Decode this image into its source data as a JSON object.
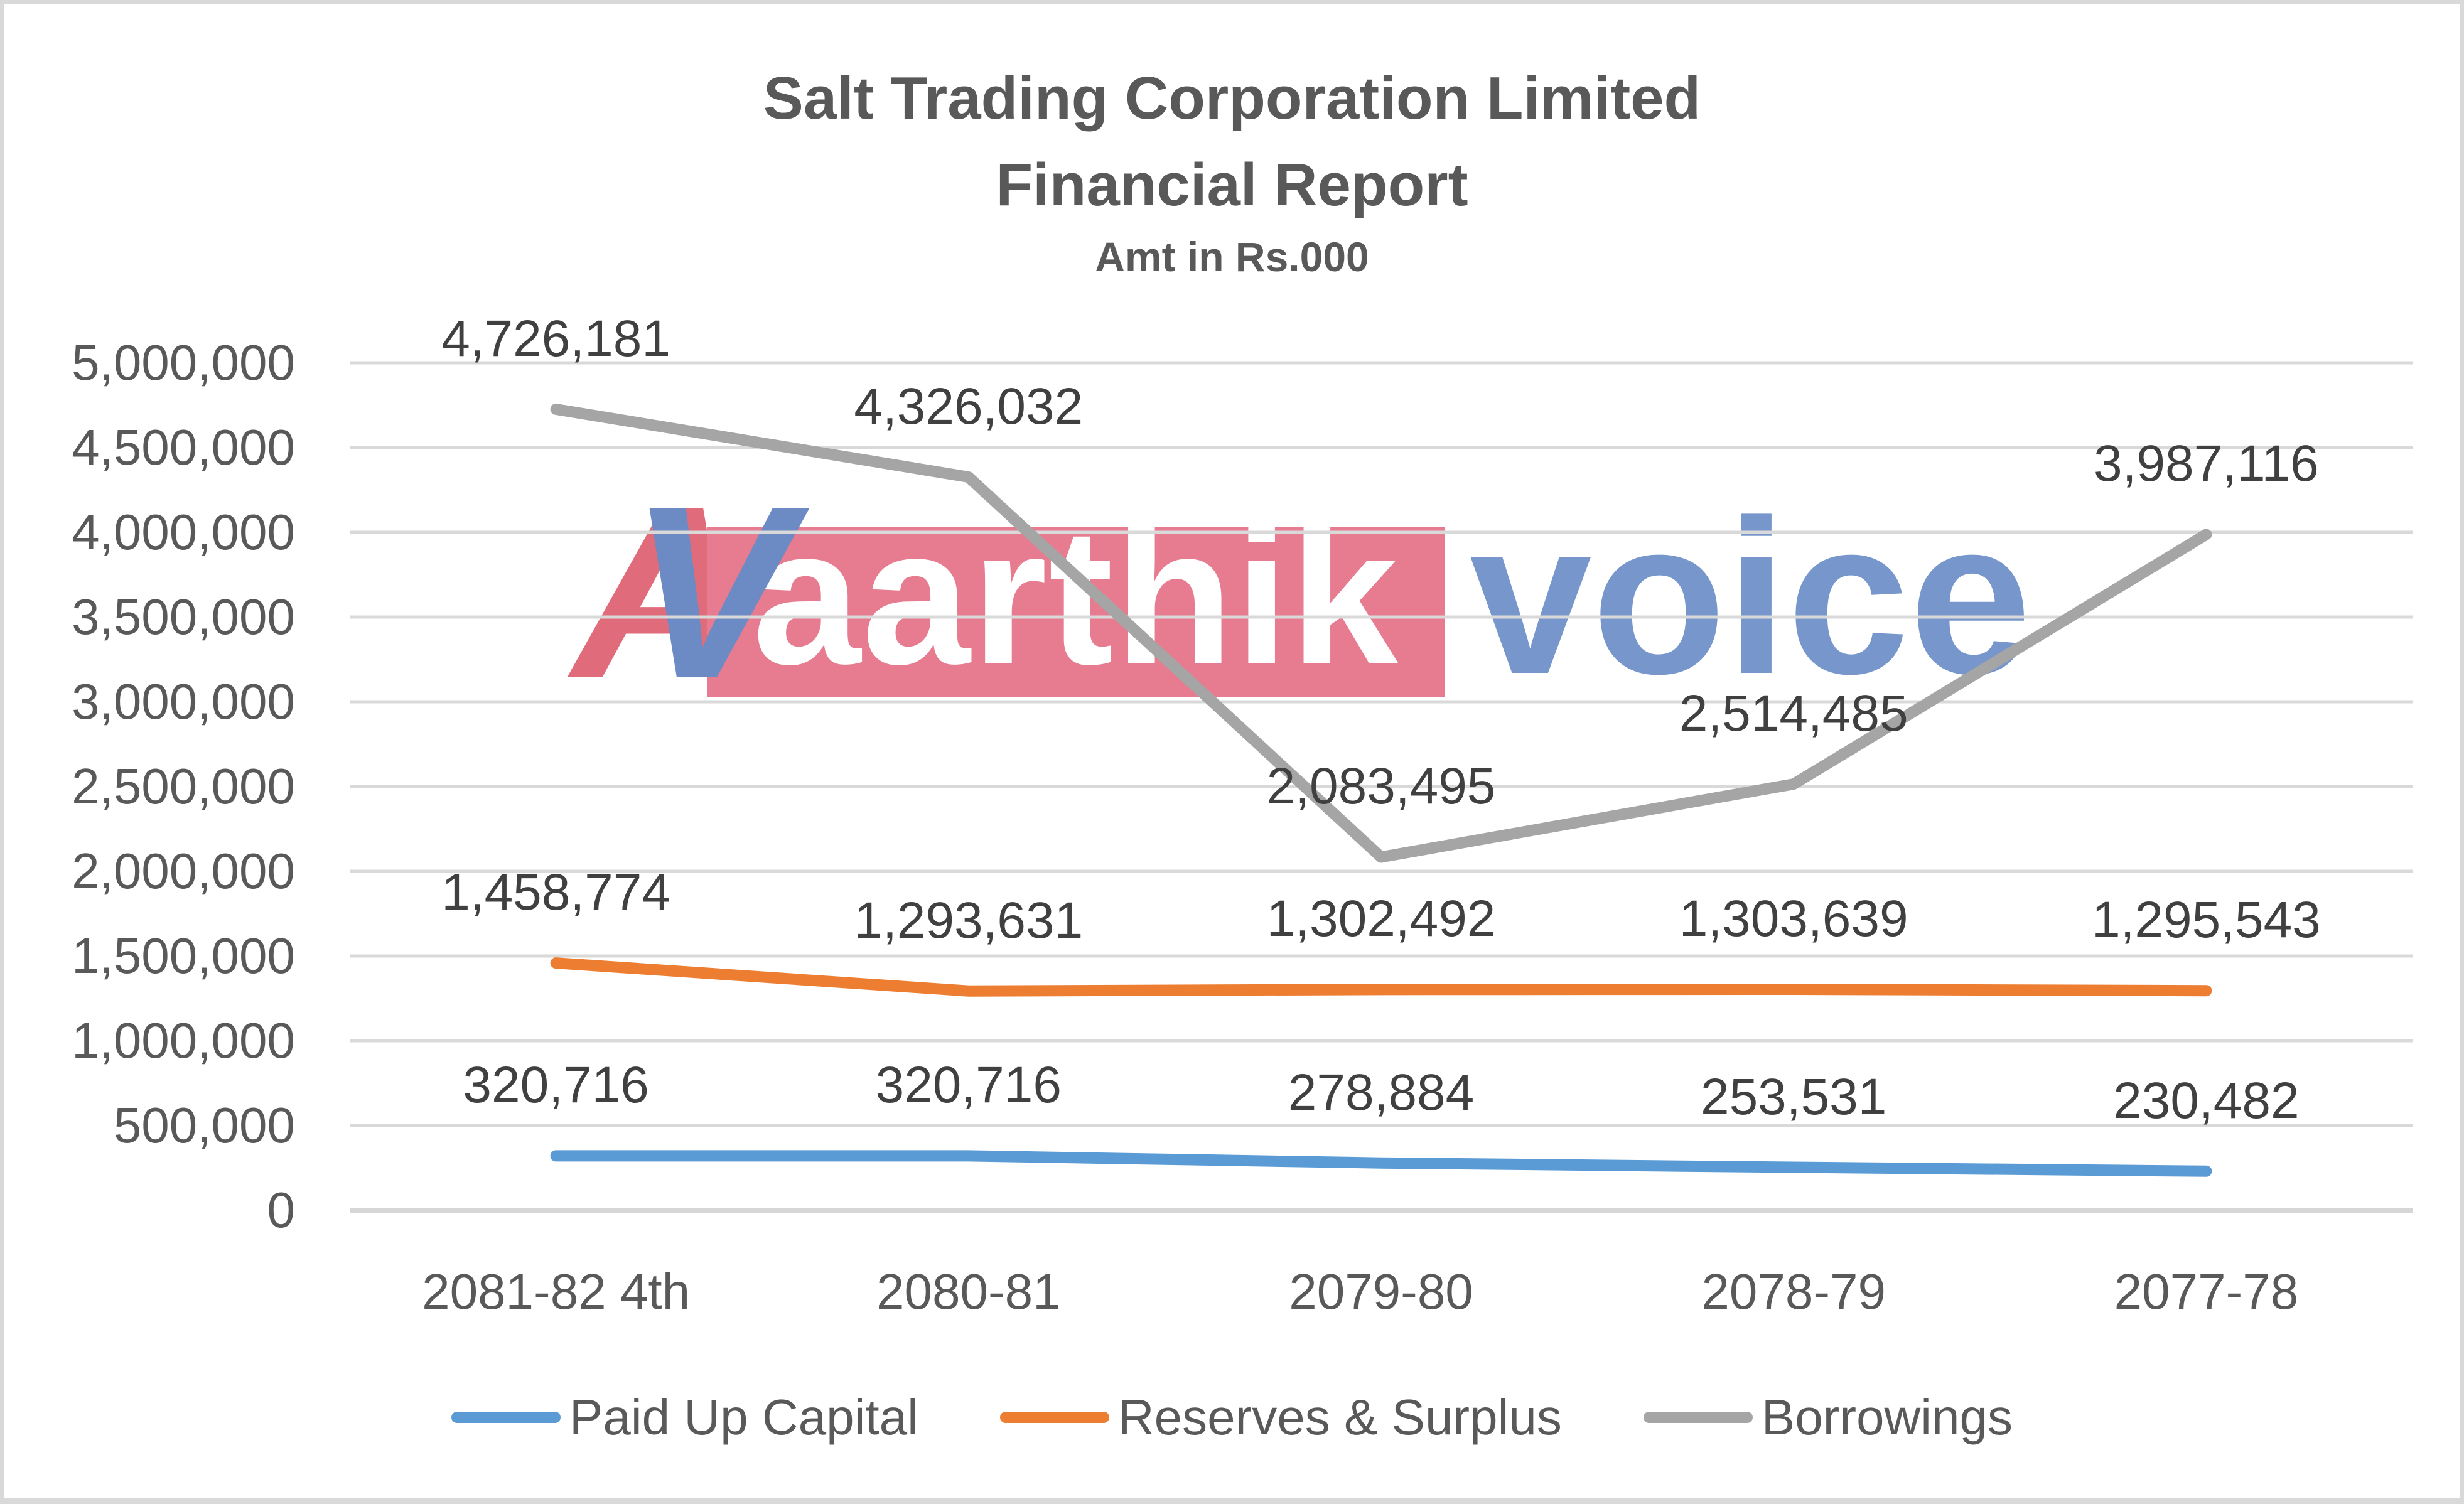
{
  "title": {
    "line1": "Salt Trading Corporation Limited",
    "line2": "Financial Report",
    "subtitle": "Amt in Rs.000"
  },
  "watermark": {
    "letter_a": "A",
    "letter_v": "V",
    "word1": "aarthik",
    "word2": "voice",
    "a_color": "#d63a50",
    "v_color": "#3b64b0",
    "box_color": "#e0506a",
    "voice_color": "#4a74bc"
  },
  "chart_data": {
    "type": "line",
    "title": "Salt Trading Corporation Limited",
    "subtitle": "Financial Report",
    "units": "Amt in Rs.000",
    "grid": "horizontal",
    "legend_position": "bottom",
    "categories": [
      "2081-82 4th",
      "2080-81",
      "2079-80",
      "2078-79",
      "2077-78"
    ],
    "series": [
      {
        "name": "Paid Up Capital",
        "color": "#5b9bd5",
        "values": [
          320716,
          320716,
          278884,
          253531,
          230482
        ],
        "labels": [
          "320,716",
          "320,716",
          "278,884",
          "253,531",
          "230,482"
        ]
      },
      {
        "name": "Reserves & Surplus",
        "color": "#ed7d31",
        "values": [
          1458774,
          1293631,
          1302492,
          1303639,
          1295543
        ],
        "labels": [
          "1,458,774",
          "1,293,631",
          "1,302,492",
          "1,303,639",
          "1,295,543"
        ]
      },
      {
        "name": "Borrowings",
        "color": "#a5a5a5",
        "values": [
          4726181,
          4326032,
          2083495,
          2514485,
          3987116
        ],
        "labels": [
          "4,726,181",
          "4,326,032",
          "2,083,495",
          "2,514,485",
          "3,987,116"
        ]
      }
    ],
    "y_axis": {
      "min": 0,
      "max": 5000000,
      "step": 500000,
      "tick_labels": [
        "0",
        "500,000",
        "1,000,000",
        "1,500,000",
        "2,000,000",
        "2,500,000",
        "3,000,000",
        "3,500,000",
        "4,000,000",
        "4,500,000",
        "5,000,000"
      ]
    }
  }
}
